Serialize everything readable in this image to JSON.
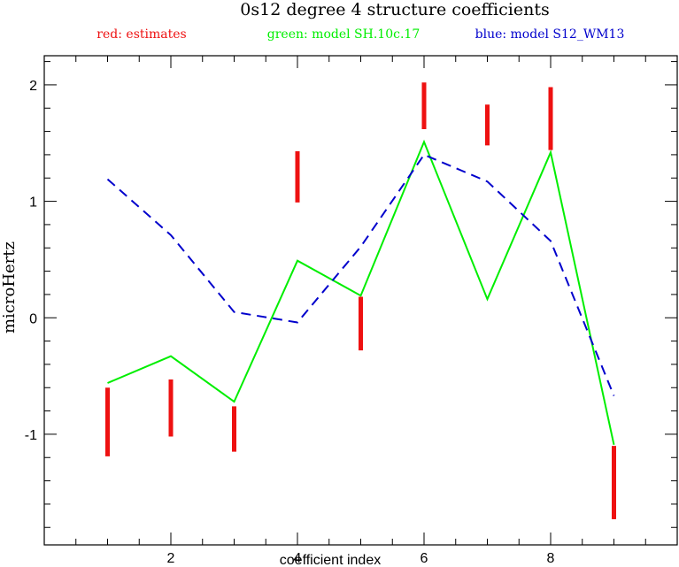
{
  "chart_data": {
    "type": "line",
    "title": "0s12 degree 4 structure coefficients",
    "xlabel": "coefficient index",
    "ylabel": "microHertz",
    "xlim": [
      0,
      10
    ],
    "ylim": [
      -1.95,
      2.25
    ],
    "x_ticks": [
      2,
      4,
      6,
      8
    ],
    "x_minor_step": 0.5,
    "y_ticks": [
      -1,
      0,
      1,
      2
    ],
    "y_minor_step": 0.2,
    "grid": false,
    "legend": {
      "placement": "top",
      "entries": [
        {
          "text": "red: estimates",
          "color": "#ee1111"
        },
        {
          "text": "green: model SH.10c.17",
          "color": "#00ee00"
        },
        {
          "text": "blue: model S12_WM13",
          "color": "#0000cc"
        }
      ]
    },
    "estimates": {
      "color": "#ee1111",
      "x": [
        1,
        2,
        3,
        4,
        5,
        6,
        7,
        8,
        9
      ],
      "low": [
        -1.19,
        -1.02,
        -1.15,
        0.99,
        -0.28,
        1.62,
        1.48,
        1.44,
        -1.73
      ],
      "high": [
        -0.6,
        -0.53,
        -0.76,
        1.43,
        0.18,
        2.02,
        1.83,
        1.98,
        -1.1
      ]
    },
    "series": [
      {
        "name": "model SH.10c.17",
        "color": "#00ee00",
        "style": "solid",
        "x": [
          1,
          2,
          3,
          4,
          5,
          6,
          7,
          8,
          9
        ],
        "values": [
          -0.56,
          -0.33,
          -0.72,
          0.49,
          0.19,
          1.51,
          0.16,
          1.42,
          -1.09
        ]
      },
      {
        "name": "model S12_WM13",
        "color": "#0000cc",
        "style": "dashed",
        "x": [
          1,
          2,
          3,
          4,
          5,
          6,
          7,
          8,
          9
        ],
        "values": [
          1.19,
          0.71,
          0.05,
          -0.04,
          0.61,
          1.4,
          1.17,
          0.66,
          -0.67
        ]
      }
    ]
  }
}
